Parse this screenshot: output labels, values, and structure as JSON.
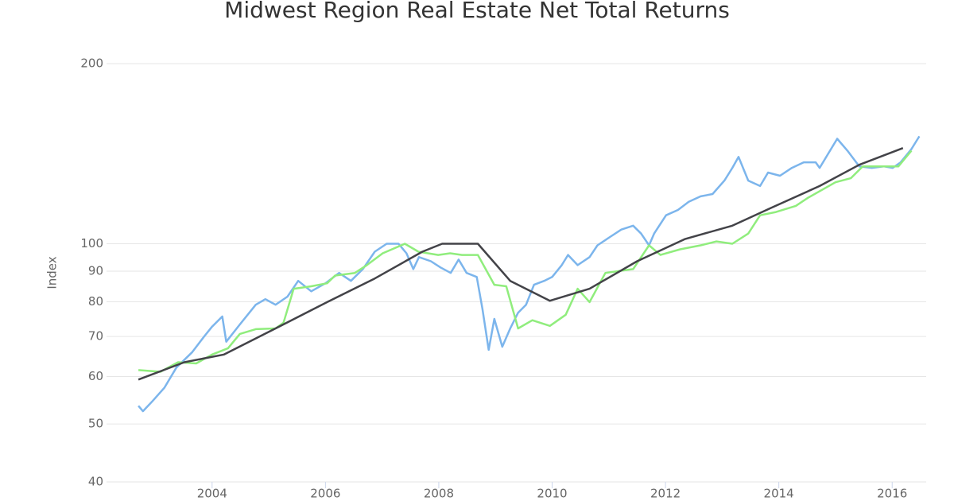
{
  "chart_data": {
    "type": "line",
    "title": "Midwest Region Real Estate Net Total Returns",
    "y_label": "Index",
    "yscale": "log",
    "grid": true,
    "xlim": [
      2002.53,
      2016.6
    ],
    "xticks": [
      2004,
      2006,
      2008,
      2010,
      2012,
      2014,
      2016
    ],
    "ylim": [
      40,
      200
    ],
    "yticks": [
      40,
      50,
      60,
      70,
      80,
      90,
      100,
      200
    ],
    "series": [
      {
        "color": "#7cb5ec",
        "x": [
          2002.7,
          2002.78,
          2002.95,
          2003.16,
          2003.37,
          2003.65,
          2003.86,
          2004.0,
          2004.18,
          2004.25,
          2004.49,
          2004.77,
          2004.94,
          2005.12,
          2005.33,
          2005.52,
          2005.75,
          2006.0,
          2006.24,
          2006.45,
          2006.66,
          2006.87,
          2007.08,
          2007.29,
          2007.43,
          2007.55,
          2007.65,
          2007.86,
          2008.03,
          2008.21,
          2008.35,
          2008.49,
          2008.67,
          2008.77,
          2008.88,
          2008.98,
          2009.12,
          2009.26,
          2009.4,
          2009.54,
          2009.68,
          2009.86,
          2010.0,
          2010.17,
          2010.28,
          2010.45,
          2010.66,
          2010.8,
          2011.01,
          2011.22,
          2011.43,
          2011.57,
          2011.71,
          2011.8,
          2012.01,
          2012.22,
          2012.41,
          2012.62,
          2012.83,
          2013.04,
          2013.18,
          2013.29,
          2013.46,
          2013.67,
          2013.81,
          2014.02,
          2014.23,
          2014.44,
          2014.65,
          2014.72,
          2014.86,
          2015.03,
          2015.21,
          2015.42,
          2015.64,
          2015.85,
          2016.01,
          2016.15,
          2016.34,
          2016.48
        ],
        "values": [
          53.6,
          52.5,
          54.6,
          57.5,
          62.1,
          65.9,
          70.0,
          72.7,
          75.6,
          68.6,
          73.3,
          79.1,
          80.8,
          79.1,
          81.6,
          86.7,
          83.3,
          85.9,
          89.4,
          86.7,
          90.7,
          97.0,
          100,
          100,
          96.4,
          90.7,
          95.0,
          93.5,
          91.3,
          89.4,
          94.1,
          89.4,
          88.0,
          77.9,
          66.5,
          74.9,
          67.3,
          72.2,
          76.7,
          79.1,
          85.4,
          86.7,
          88.0,
          92.1,
          95.8,
          92.1,
          95.0,
          99.4,
          102.5,
          105.6,
          107.2,
          104.0,
          99.4,
          104.0,
          111.6,
          113.9,
          117.5,
          120.0,
          121.1,
          127.5,
          133.9,
          139.7,
          127.5,
          124.9,
          131.5,
          129.9,
          133.9,
          136.8,
          136.8,
          133.9,
          140.9,
          149.8,
          143.1,
          134.7,
          133.9,
          134.7,
          133.9,
          136.8,
          144.0,
          151.2
        ]
      },
      {
        "color": "#90ed7d",
        "x": [
          2002.7,
          2003.09,
          2003.4,
          2003.72,
          2004.0,
          2004.28,
          2004.49,
          2004.77,
          2005.12,
          2005.26,
          2005.44,
          2005.75,
          2006.03,
          2006.17,
          2006.52,
          2006.73,
          2007.01,
          2007.4,
          2007.64,
          2007.99,
          2008.2,
          2008.41,
          2008.69,
          2008.98,
          2009.19,
          2009.4,
          2009.65,
          2009.96,
          2010.24,
          2010.45,
          2010.66,
          2010.94,
          2011.43,
          2011.71,
          2011.91,
          2012.26,
          2012.62,
          2012.9,
          2013.18,
          2013.46,
          2013.67,
          2013.95,
          2014.3,
          2014.51,
          2015.0,
          2015.27,
          2015.48,
          2016.11,
          2016.34
        ],
        "values": [
          61.5,
          61.1,
          63.4,
          63.1,
          65.3,
          66.9,
          70.7,
          72.0,
          72.2,
          73.8,
          84.1,
          84.9,
          85.9,
          88.5,
          89.4,
          92.1,
          96.4,
          100,
          97.0,
          95.8,
          96.4,
          95.8,
          95.8,
          85.4,
          84.9,
          72.2,
          74.5,
          72.9,
          76.1,
          84.1,
          79.9,
          89.4,
          90.7,
          99.4,
          95.8,
          97.9,
          99.4,
          100.9,
          100,
          104.0,
          111.6,
          113.0,
          115.7,
          119.3,
          126.7,
          128.7,
          134.7,
          134.7,
          143.1
        ]
      },
      {
        "color": "#434348",
        "x": [
          2002.7,
          2003.51,
          2004.21,
          2005.12,
          2006.03,
          2006.87,
          2007.71,
          2008.06,
          2008.69,
          2009.26,
          2009.96,
          2010.66,
          2011.5,
          2012.34,
          2013.18,
          2013.88,
          2014.72,
          2015.42,
          2016.19
        ],
        "values": [
          59.3,
          63.4,
          65.3,
          72.2,
          79.9,
          87.5,
          97.0,
          100,
          100,
          86.7,
          80.3,
          84.1,
          93.5,
          101.8,
          107.2,
          115.0,
          124.9,
          135.5,
          144.5
        ]
      }
    ]
  }
}
